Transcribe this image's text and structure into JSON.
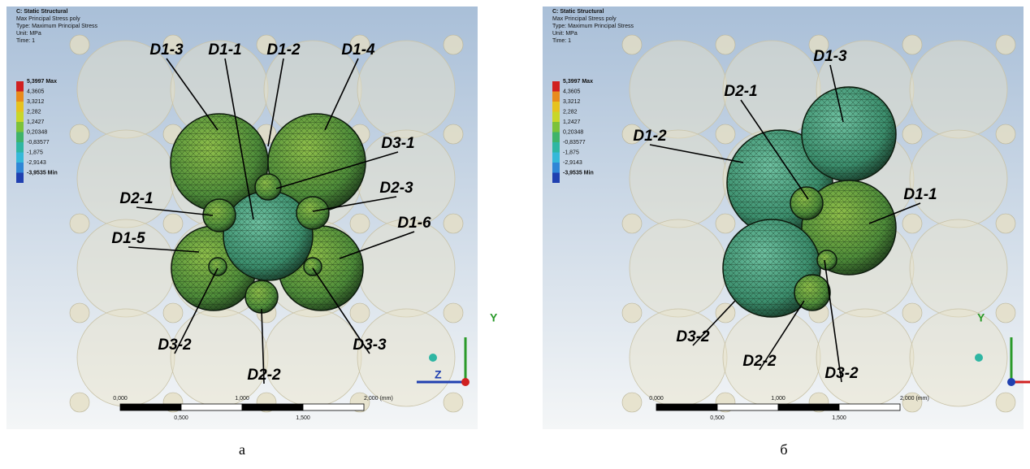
{
  "panels": [
    {
      "caption": "а",
      "header": [
        "C: Static Structural",
        "Max Principal Stress poly",
        "Type: Maximum Principal Stress",
        "Unit: MPa",
        "Time: 1"
      ],
      "legend": [
        "5,3997 Max",
        "4,3605",
        "3,3212",
        "2,282",
        "1,2427",
        "0,20348",
        "-0,83577",
        "-1,875",
        "-2,9143",
        "-3,9535 Min"
      ],
      "labels": [
        "D1-3",
        "D1-1",
        "D1-2",
        "D1-4",
        "D3-1",
        "D2-1",
        "D2-3",
        "D1-5",
        "D1-6",
        "D3-2",
        "D3-3",
        "D2-2"
      ],
      "axes": [
        "Y",
        "Z"
      ],
      "scale_top": [
        "0,000",
        "1,000",
        "2,000 (mm)"
      ],
      "scale_bottom": [
        "0,500",
        "1,500"
      ]
    },
    {
      "caption": "б",
      "header": [
        "C: Static Structural",
        "Max Principal Stress poly",
        "Type: Maximum Principal Stress",
        "Unit: MPa",
        "Time: 1"
      ],
      "legend": [
        "5,3997 Max",
        "4,3605",
        "3,3212",
        "2,282",
        "1,2427",
        "0,20348",
        "-0,83577",
        "-1,875",
        "-2,9143",
        "-3,9535 Min"
      ],
      "labels": [
        "D1-3",
        "D2-1",
        "D1-2",
        "D1-1",
        "D3-2",
        "D2-2",
        "D3-2"
      ],
      "axes": [
        "Y"
      ],
      "scale_top": [
        "0,000",
        "1,000",
        "2,000 (mm)"
      ],
      "scale_bottom": [
        "0,500",
        "1,500"
      ]
    }
  ]
}
